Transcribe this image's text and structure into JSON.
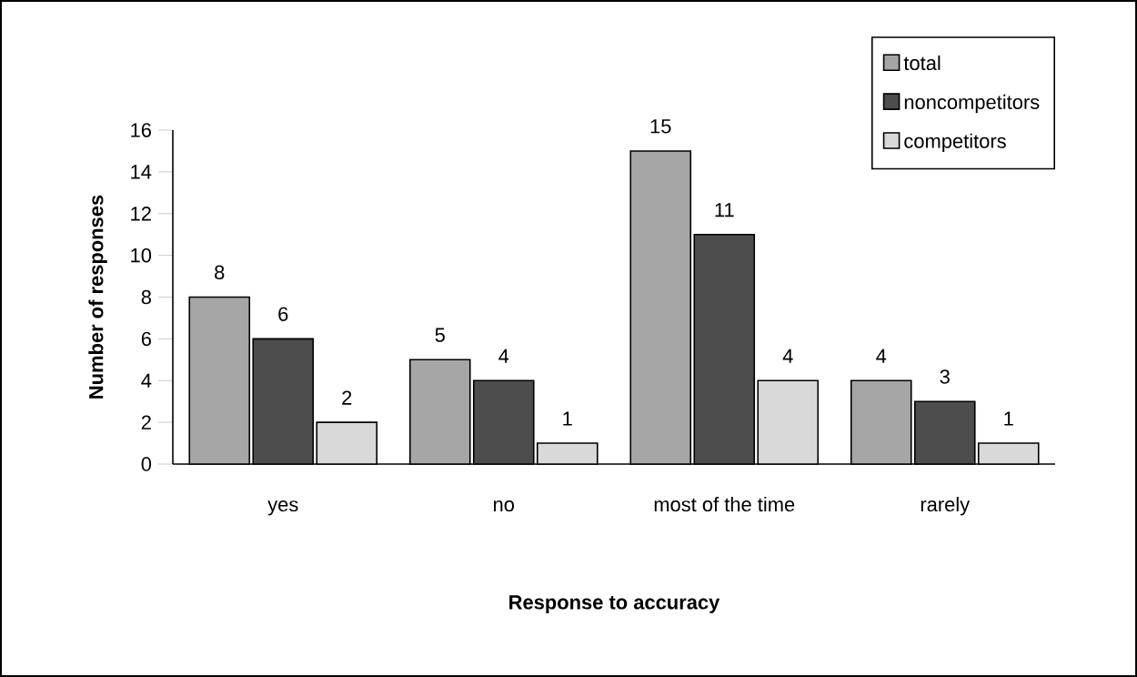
{
  "chart_data": {
    "type": "bar",
    "xlabel": "Response to accuracy",
    "ylabel": "Number   of   responses",
    "categories": [
      "yes",
      "no",
      "most of the time",
      "rarely"
    ],
    "series": [
      {
        "name": "total",
        "color": "#a6a6a6",
        "values": [
          8,
          5,
          15,
          4
        ]
      },
      {
        "name": "noncompetitors",
        "color": "#4d4d4d",
        "values": [
          6,
          4,
          11,
          3
        ]
      },
      {
        "name": "competitors",
        "color": "#d9d9d9",
        "values": [
          2,
          1,
          4,
          1
        ]
      }
    ],
    "ylim": [
      0,
      16
    ],
    "yticks": [
      0,
      2,
      4,
      6,
      8,
      10,
      12,
      14,
      16
    ],
    "data_labels": true,
    "legend": "top right",
    "grid": false
  }
}
